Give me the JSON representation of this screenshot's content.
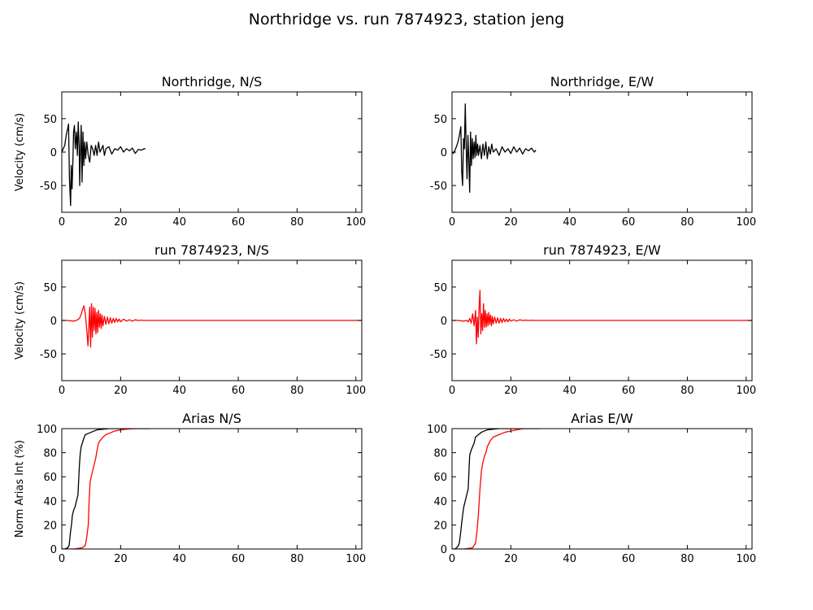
{
  "title": "Northridge vs. run 7874923, station jeng",
  "colors": {
    "observed": "#000000",
    "simulated": "#ff0000",
    "frame": "#000000"
  },
  "chart_data": [
    {
      "type": "line",
      "title": "Northridge, N/S",
      "xlabel": "",
      "ylabel": "Velocity (cm/s)",
      "xlim": [
        0,
        102
      ],
      "ylim": [
        -90,
        90
      ],
      "xticks": [
        0,
        20,
        40,
        60,
        80,
        100
      ],
      "yticks": [
        -50,
        0,
        50
      ],
      "grid": false,
      "series": [
        {
          "color": "#000000",
          "x": [
            0,
            0.5,
            1,
            1.5,
            2,
            2.3,
            2.6,
            3,
            3.2,
            3.5,
            3.8,
            4,
            4.3,
            4.6,
            5,
            5.3,
            5.6,
            5.9,
            6.1,
            6.3,
            6.6,
            6.9,
            7.2,
            7.5,
            7.8,
            8.1,
            8.5,
            9,
            9.5,
            10,
            10.5,
            11,
            11.5,
            12,
            12.5,
            13,
            13.5,
            14,
            14.5,
            15,
            16,
            17,
            18,
            19,
            20,
            21,
            22,
            23,
            24,
            25,
            26,
            27,
            28,
            28.5
          ],
          "y": [
            0,
            5,
            10,
            25,
            35,
            42,
            -40,
            -80,
            -20,
            -55,
            -10,
            30,
            40,
            5,
            30,
            -5,
            45,
            10,
            -50,
            -5,
            40,
            -45,
            30,
            -20,
            15,
            -10,
            15,
            -5,
            -15,
            10,
            5,
            -5,
            10,
            -5,
            15,
            0,
            5,
            10,
            -5,
            5,
            8,
            -3,
            5,
            3,
            8,
            0,
            5,
            2,
            6,
            -2,
            4,
            3,
            5,
            5
          ]
        }
      ]
    },
    {
      "type": "line",
      "title": "Northridge, E/W",
      "xlabel": "",
      "ylabel": "",
      "xlim": [
        0,
        102
      ],
      "ylim": [
        -90,
        90
      ],
      "xticks": [
        0,
        20,
        40,
        60,
        80,
        100
      ],
      "yticks": [
        -50,
        0,
        50
      ],
      "grid": false,
      "series": [
        {
          "color": "#000000",
          "x": [
            0,
            0.5,
            1,
            1.5,
            2,
            2.5,
            3,
            3.3,
            3.6,
            3.9,
            4.2,
            4.5,
            4.8,
            5.1,
            5.4,
            5.7,
            6,
            6.3,
            6.6,
            6.9,
            7.2,
            7.5,
            7.8,
            8.1,
            8.4,
            8.7,
            9,
            9.5,
            10,
            10.5,
            11,
            11.5,
            12,
            12.5,
            13,
            13.5,
            14,
            15,
            16,
            17,
            18,
            19,
            20,
            21,
            22,
            23,
            24,
            25,
            26,
            27,
            28,
            28.5
          ],
          "y": [
            0,
            -2,
            3,
            8,
            15,
            25,
            38,
            -30,
            -50,
            20,
            5,
            72,
            10,
            -40,
            25,
            -10,
            -60,
            30,
            -20,
            20,
            -10,
            15,
            -8,
            25,
            -5,
            12,
            -5,
            10,
            -10,
            12,
            -5,
            15,
            -10,
            8,
            -3,
            12,
            0,
            5,
            -5,
            8,
            0,
            5,
            -2,
            8,
            0,
            6,
            -3,
            5,
            2,
            6,
            0,
            3
          ]
        }
      ]
    },
    {
      "type": "line",
      "title": "run 7874923, N/S",
      "xlabel": "",
      "ylabel": "Velocity (cm/s)",
      "xlim": [
        0,
        102
      ],
      "ylim": [
        -90,
        90
      ],
      "xticks": [
        0,
        20,
        40,
        60,
        80,
        100
      ],
      "yticks": [
        -50,
        0,
        50
      ],
      "grid": false,
      "series": [
        {
          "color": "#ff0000",
          "x": [
            0,
            2,
            4,
            5,
            6,
            6.5,
            7,
            7.5,
            8,
            8.3,
            8.6,
            8.9,
            9.2,
            9.5,
            9.8,
            10.1,
            10.4,
            10.7,
            11,
            11.3,
            11.6,
            11.9,
            12.2,
            12.5,
            12.8,
            13.1,
            13.4,
            13.7,
            14,
            14.5,
            15,
            15.5,
            16,
            16.5,
            17,
            17.5,
            18,
            18.5,
            19,
            19.5,
            20,
            21,
            22,
            23,
            24,
            25,
            26,
            27,
            28,
            30,
            40,
            60,
            80,
            100,
            102
          ],
          "y": [
            0,
            0,
            -1,
            0,
            3,
            8,
            15,
            22,
            10,
            -5,
            -20,
            -38,
            -10,
            20,
            -40,
            25,
            -25,
            20,
            -15,
            18,
            -20,
            12,
            -18,
            15,
            -10,
            10,
            -12,
            8,
            -8,
            6,
            -6,
            5,
            -5,
            4,
            -4,
            3,
            -3,
            3,
            -2,
            2,
            -2,
            2,
            -1,
            1,
            -1,
            1,
            0,
            0.5,
            0,
            0,
            0,
            0,
            0,
            0,
            0
          ]
        }
      ]
    },
    {
      "type": "line",
      "title": "run 7874923, E/W",
      "xlabel": "",
      "ylabel": "",
      "xlim": [
        0,
        102
      ],
      "ylim": [
        -90,
        90
      ],
      "xticks": [
        0,
        20,
        40,
        60,
        80,
        100
      ],
      "yticks": [
        -50,
        0,
        50
      ],
      "grid": false,
      "series": [
        {
          "color": "#ff0000",
          "x": [
            0,
            2,
            4,
            5,
            5.5,
            6,
            6.5,
            7,
            7.5,
            8,
            8.3,
            8.6,
            8.9,
            9.2,
            9.5,
            9.8,
            10.1,
            10.4,
            10.7,
            11,
            11.3,
            11.6,
            11.9,
            12.2,
            12.5,
            12.8,
            13.1,
            13.4,
            13.7,
            14,
            14.5,
            15,
            15.5,
            16,
            16.5,
            17,
            17.5,
            18,
            18.5,
            19,
            19.5,
            20,
            21,
            22,
            23,
            24,
            25,
            26,
            27,
            28,
            30,
            40,
            60,
            80,
            100,
            102
          ],
          "y": [
            0,
            0,
            -1,
            0,
            -2,
            3,
            -4,
            10,
            -8,
            15,
            -35,
            5,
            -25,
            20,
            45,
            -20,
            10,
            -15,
            25,
            -10,
            15,
            -10,
            10,
            -8,
            12,
            -6,
            8,
            -8,
            6,
            -5,
            5,
            -4,
            4,
            -4,
            3,
            -3,
            3,
            -2,
            2,
            -2,
            2,
            -1,
            1,
            -1,
            1,
            0,
            0.5,
            0,
            0.3,
            0,
            0,
            0,
            0,
            0,
            0,
            0
          ]
        }
      ]
    },
    {
      "type": "line",
      "title": "Arias N/S",
      "xlabel": "",
      "ylabel": "Norm Arias Int (%)",
      "xlim": [
        0,
        102
      ],
      "ylim": [
        0,
        100
      ],
      "xticks": [
        0,
        20,
        40,
        60,
        80,
        100
      ],
      "yticks": [
        0,
        20,
        40,
        60,
        80,
        100
      ],
      "grid": false,
      "series": [
        {
          "color": "#000000",
          "x": [
            0,
            1,
            2,
            2.5,
            3,
            3.3,
            3.6,
            4,
            4.5,
            5,
            5.5,
            6,
            6.3,
            6.6,
            7,
            7.5,
            8,
            9,
            10,
            11,
            12,
            14,
            16,
            20,
            25,
            30
          ],
          "y": [
            0,
            0,
            1,
            3,
            15,
            20,
            28,
            32,
            35,
            40,
            45,
            70,
            80,
            85,
            88,
            92,
            95,
            96,
            97,
            98,
            99,
            99.5,
            100,
            100,
            100,
            100
          ]
        },
        {
          "color": "#ff0000",
          "x": [
            0,
            4,
            7,
            8,
            8.5,
            9,
            9.3,
            9.6,
            10,
            10.5,
            11,
            11.5,
            12,
            12.5,
            13,
            14,
            15,
            16,
            17,
            18,
            20,
            22,
            24,
            25
          ],
          "y": [
            0,
            0,
            1,
            3,
            10,
            20,
            40,
            55,
            60,
            65,
            70,
            75,
            82,
            88,
            90,
            93,
            95,
            96,
            97,
            98,
            99,
            99.5,
            100,
            100
          ]
        }
      ]
    },
    {
      "type": "line",
      "title": "Arias E/W",
      "xlabel": "",
      "ylabel": "",
      "xlim": [
        0,
        102
      ],
      "ylim": [
        0,
        100
      ],
      "xticks": [
        0,
        20,
        40,
        60,
        80,
        100
      ],
      "yticks": [
        0,
        20,
        40,
        60,
        80,
        100
      ],
      "grid": false,
      "series": [
        {
          "color": "#000000",
          "x": [
            0,
            1,
            2,
            2.5,
            3,
            3.3,
            3.6,
            4,
            4.5,
            5,
            5.5,
            6,
            6.5,
            7,
            7.5,
            8,
            9,
            10,
            11,
            12,
            14,
            16,
            20,
            25,
            30
          ],
          "y": [
            0,
            0,
            2,
            5,
            15,
            22,
            28,
            35,
            40,
            45,
            50,
            78,
            82,
            85,
            88,
            93,
            95,
            97,
            98,
            99,
            99.5,
            100,
            100,
            100,
            100
          ]
        },
        {
          "color": "#ff0000",
          "x": [
            0,
            4,
            7,
            8,
            8.5,
            9,
            9.5,
            10,
            10.5,
            11,
            11.5,
            12,
            13,
            14,
            15,
            16,
            17,
            18,
            20,
            22,
            24,
            25
          ],
          "y": [
            0,
            0,
            1,
            5,
            15,
            30,
            50,
            65,
            72,
            77,
            80,
            85,
            90,
            93,
            94,
            95,
            96,
            97,
            98,
            99,
            100,
            100
          ]
        }
      ]
    }
  ]
}
